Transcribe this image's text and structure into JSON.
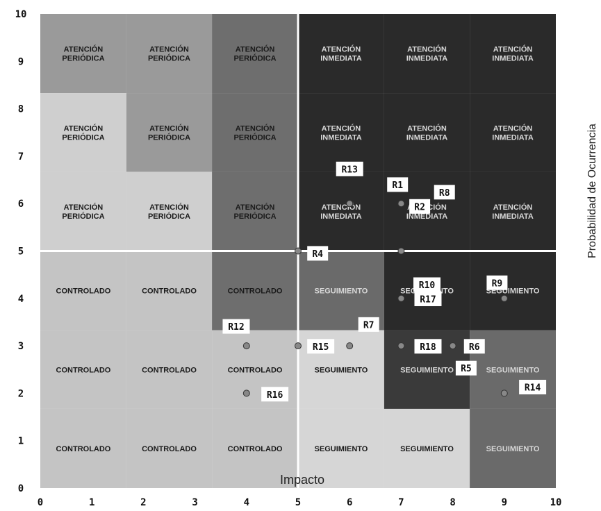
{
  "chart_data": {
    "type": "scatter",
    "xlabel": "Impacto",
    "ylabel": "Probabilidad de Ocurrencia",
    "xlim": [
      0,
      10
    ],
    "ylim": [
      0,
      10
    ],
    "x_ticks": [
      "0",
      "1",
      "2",
      "3",
      "4",
      "5",
      "6",
      "7",
      "8",
      "9",
      "10"
    ],
    "y_ticks": [
      "0",
      "1",
      "2",
      "3",
      "4",
      "5",
      "6",
      "7",
      "8",
      "9",
      "10"
    ],
    "divider_x": 5,
    "divider_y": 5,
    "columns": [
      {
        "from": 0,
        "to": 1.67
      },
      {
        "from": 1.67,
        "to": 3.33
      },
      {
        "from": 3.33,
        "to": 5
      },
      {
        "from": 5,
        "to": 6.67
      },
      {
        "from": 6.67,
        "to": 8.33
      },
      {
        "from": 8.33,
        "to": 10
      }
    ],
    "rows": [
      {
        "from": 8.33,
        "to": 10
      },
      {
        "from": 6.67,
        "to": 8.33
      },
      {
        "from": 5,
        "to": 6.67
      },
      {
        "from": 3.33,
        "to": 5
      },
      {
        "from": 1.67,
        "to": 3.33
      },
      {
        "from": 0,
        "to": 1.67
      }
    ],
    "zone_colors": {
      "controlado": "#c4c4c4",
      "seguimiento_light": "#d6d6d6",
      "atencion_light": "#cfcfcf",
      "atencion_mid": "#9a9a9a",
      "atencion_dark": "#6e6e6e",
      "inmediata_dark": "#2a2a2a",
      "seguimiento_dark": "#3a3a3a",
      "seguimiento_mid": "#6a6a6a"
    },
    "cells": [
      {
        "col": 0,
        "row": 0,
        "text": "ATENCIÓN\nPERIÓDICA",
        "zone": "atencion_mid"
      },
      {
        "col": 1,
        "row": 0,
        "text": "ATENCIÓN\nPERIÓDICA",
        "zone": "atencion_mid"
      },
      {
        "col": 2,
        "row": 0,
        "text": "ATENCIÓN\nPERIÓDICA",
        "zone": "atencion_dark"
      },
      {
        "col": 3,
        "row": 0,
        "text": "ATENCIÓN\nINMEDIATA",
        "zone": "inmediata_dark"
      },
      {
        "col": 4,
        "row": 0,
        "text": "ATENCIÓN\nINMEDIATA",
        "zone": "inmediata_dark"
      },
      {
        "col": 5,
        "row": 0,
        "text": "ATENCIÓN\nINMEDIATA",
        "zone": "inmediata_dark"
      },
      {
        "col": 0,
        "row": 1,
        "text": "ATENCIÓN\nPERIÓDICA",
        "zone": "atencion_light"
      },
      {
        "col": 1,
        "row": 1,
        "text": "ATENCIÓN\nPERIÓDICA",
        "zone": "atencion_mid"
      },
      {
        "col": 2,
        "row": 1,
        "text": "ATENCIÓN\nPERIÓDICA",
        "zone": "atencion_dark"
      },
      {
        "col": 3,
        "row": 1,
        "text": "ATENCIÓN\nINMEDIATA",
        "zone": "inmediata_dark"
      },
      {
        "col": 4,
        "row": 1,
        "text": "ATENCIÓN\nINMEDIATA",
        "zone": "inmediata_dark"
      },
      {
        "col": 5,
        "row": 1,
        "text": "ATENCIÓN\nINMEDIATA",
        "zone": "inmediata_dark"
      },
      {
        "col": 0,
        "row": 2,
        "text": "ATENCIÓN\nPERIÓDICA",
        "zone": "atencion_light"
      },
      {
        "col": 1,
        "row": 2,
        "text": "ATENCIÓN\nPERIÓDICA",
        "zone": "atencion_light"
      },
      {
        "col": 2,
        "row": 2,
        "text": "ATENCIÓN\nPERIÓDICA",
        "zone": "atencion_dark"
      },
      {
        "col": 3,
        "row": 2,
        "text": "ATENCIÓN\nINMEDIATA",
        "zone": "inmediata_dark"
      },
      {
        "col": 4,
        "row": 2,
        "text": "ATENCIÓN\nINMEDIATA",
        "zone": "inmediata_dark"
      },
      {
        "col": 5,
        "row": 2,
        "text": "ATENCIÓN\nINMEDIATA",
        "zone": "inmediata_dark"
      },
      {
        "col": 0,
        "row": 3,
        "text": "CONTROLADO",
        "zone": "controlado"
      },
      {
        "col": 1,
        "row": 3,
        "text": "CONTROLADO",
        "zone": "controlado"
      },
      {
        "col": 2,
        "row": 3,
        "text": "CONTROLADO",
        "zone": "atencion_dark"
      },
      {
        "col": 3,
        "row": 3,
        "text": "SEGUIMIENTO",
        "zone": "seguimiento_mid"
      },
      {
        "col": 4,
        "row": 3,
        "text": "SEGUIMIENTO",
        "zone": "inmediata_dark"
      },
      {
        "col": 5,
        "row": 3,
        "text": "SEGUIMIENTO",
        "zone": "inmediata_dark"
      },
      {
        "col": 0,
        "row": 4,
        "text": "CONTROLADO",
        "zone": "controlado"
      },
      {
        "col": 1,
        "row": 4,
        "text": "CONTROLADO",
        "zone": "controlado"
      },
      {
        "col": 2,
        "row": 4,
        "text": "CONTROLADO",
        "zone": "controlado"
      },
      {
        "col": 3,
        "row": 4,
        "text": "SEGUIMIENTO",
        "zone": "seguimiento_light"
      },
      {
        "col": 4,
        "row": 4,
        "text": "SEGUIMIENTO",
        "zone": "seguimiento_dark"
      },
      {
        "col": 5,
        "row": 4,
        "text": "SEGUIMIENTO",
        "zone": "seguimiento_mid"
      },
      {
        "col": 0,
        "row": 5,
        "text": "CONTROLADO",
        "zone": "controlado"
      },
      {
        "col": 1,
        "row": 5,
        "text": "CONTROLADO",
        "zone": "controlado"
      },
      {
        "col": 2,
        "row": 5,
        "text": "CONTROLADO",
        "zone": "controlado"
      },
      {
        "col": 3,
        "row": 5,
        "text": "SEGUIMIENTO",
        "zone": "seguimiento_light"
      },
      {
        "col": 4,
        "row": 5,
        "text": "SEGUIMIENTO",
        "zone": "seguimiento_light"
      },
      {
        "col": 5,
        "row": 5,
        "text": "SEGUIMIENTO",
        "zone": "seguimiento_mid"
      }
    ],
    "points": [
      {
        "x": 6,
        "y": 6
      },
      {
        "x": 7,
        "y": 6
      },
      {
        "x": 5,
        "y": 5
      },
      {
        "x": 7,
        "y": 5
      },
      {
        "x": 7,
        "y": 4
      },
      {
        "x": 9,
        "y": 4
      },
      {
        "x": 4,
        "y": 3
      },
      {
        "x": 5,
        "y": 3
      },
      {
        "x": 6,
        "y": 3
      },
      {
        "x": 7,
        "y": 3
      },
      {
        "x": 8,
        "y": 3
      },
      {
        "x": 4,
        "y": 2
      },
      {
        "x": 9,
        "y": 2
      }
    ],
    "labels": [
      {
        "text": "R13",
        "x": 6,
        "y": 6.73
      },
      {
        "text": "R1",
        "x": 6.93,
        "y": 6.4
      },
      {
        "text": "R8",
        "x": 7.84,
        "y": 6.24
      },
      {
        "text": "R2",
        "x": 7.36,
        "y": 5.94
      },
      {
        "text": "R4",
        "x": 5.38,
        "y": 4.95
      },
      {
        "text": "R10",
        "x": 7.5,
        "y": 4.29
      },
      {
        "text": "R9",
        "x": 8.86,
        "y": 4.33
      },
      {
        "text": "R17",
        "x": 7.52,
        "y": 3.99
      },
      {
        "text": "R12",
        "x": 3.8,
        "y": 3.41
      },
      {
        "text": "R7",
        "x": 6.37,
        "y": 3.45
      },
      {
        "text": "R15",
        "x": 5.44,
        "y": 2.99
      },
      {
        "text": "R18",
        "x": 7.52,
        "y": 2.99
      },
      {
        "text": "R6",
        "x": 8.42,
        "y": 2.99
      },
      {
        "text": "R5",
        "x": 8.26,
        "y": 2.53
      },
      {
        "text": "R14",
        "x": 9.55,
        "y": 2.13
      },
      {
        "text": "R16",
        "x": 4.55,
        "y": 1.98
      }
    ]
  }
}
